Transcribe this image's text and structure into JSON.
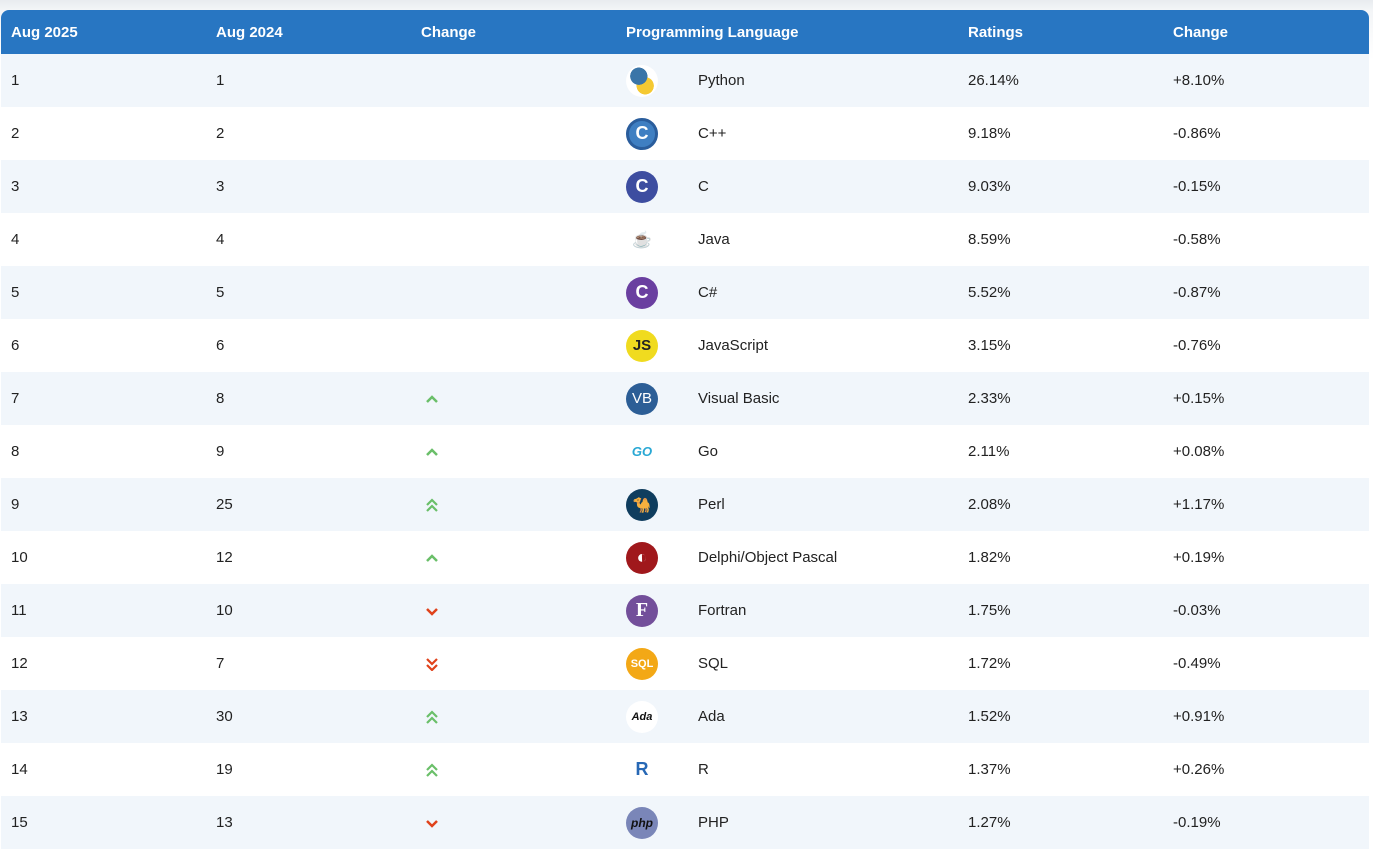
{
  "header": {
    "col_current": "Aug 2025",
    "col_previous": "Aug 2024",
    "col_change": "Change",
    "col_language": "Programming Language",
    "col_ratings": "Ratings",
    "col_ratings_change": "Change"
  },
  "colors": {
    "header": "#2876c2",
    "up": "#6abf69",
    "down": "#e0421b"
  },
  "rows": [
    {
      "rank": "1",
      "prev": "1",
      "trend": "none",
      "language": "Python",
      "icon": "python-logo",
      "rating": "26.14%",
      "change": "+8.10%"
    },
    {
      "rank": "2",
      "prev": "2",
      "trend": "none",
      "language": "C++",
      "icon": "cpp-logo",
      "rating": "9.18%",
      "change": "-0.86%"
    },
    {
      "rank": "3",
      "prev": "3",
      "trend": "none",
      "language": "C",
      "icon": "c-logo",
      "rating": "9.03%",
      "change": "-0.15%"
    },
    {
      "rank": "4",
      "prev": "4",
      "trend": "none",
      "language": "Java",
      "icon": "java-logo",
      "rating": "8.59%",
      "change": "-0.58%"
    },
    {
      "rank": "5",
      "prev": "5",
      "trend": "none",
      "language": "C#",
      "icon": "csharp-logo",
      "rating": "5.52%",
      "change": "-0.87%"
    },
    {
      "rank": "6",
      "prev": "6",
      "trend": "none",
      "language": "JavaScript",
      "icon": "javascript-logo",
      "rating": "3.15%",
      "change": "-0.76%"
    },
    {
      "rank": "7",
      "prev": "8",
      "trend": "up",
      "language": "Visual Basic",
      "icon": "visual-basic-logo",
      "rating": "2.33%",
      "change": "+0.15%"
    },
    {
      "rank": "8",
      "prev": "9",
      "trend": "up",
      "language": "Go",
      "icon": "go-logo",
      "rating": "2.11%",
      "change": "+0.08%"
    },
    {
      "rank": "9",
      "prev": "25",
      "trend": "up2",
      "language": "Perl",
      "icon": "perl-logo",
      "rating": "2.08%",
      "change": "+1.17%"
    },
    {
      "rank": "10",
      "prev": "12",
      "trend": "up",
      "language": "Delphi/Object Pascal",
      "icon": "delphi-logo",
      "rating": "1.82%",
      "change": "+0.19%"
    },
    {
      "rank": "11",
      "prev": "10",
      "trend": "down",
      "language": "Fortran",
      "icon": "fortran-logo",
      "rating": "1.75%",
      "change": "-0.03%"
    },
    {
      "rank": "12",
      "prev": "7",
      "trend": "down2",
      "language": "SQL",
      "icon": "sql-logo",
      "rating": "1.72%",
      "change": "-0.49%"
    },
    {
      "rank": "13",
      "prev": "30",
      "trend": "up2",
      "language": "Ada",
      "icon": "ada-logo",
      "rating": "1.52%",
      "change": "+0.91%"
    },
    {
      "rank": "14",
      "prev": "19",
      "trend": "up2",
      "language": "R",
      "icon": "r-logo",
      "rating": "1.37%",
      "change": "+0.26%"
    },
    {
      "rank": "15",
      "prev": "13",
      "trend": "down",
      "language": "PHP",
      "icon": "php-logo",
      "rating": "1.27%",
      "change": "-0.19%"
    }
  ],
  "icon_text": {
    "python-logo": "",
    "cpp-logo": "C",
    "c-logo": "C",
    "java-logo": "☕",
    "csharp-logo": "C",
    "javascript-logo": "JS",
    "visual-basic-logo": "VB",
    "go-logo": "GO",
    "perl-logo": "🐪",
    "delphi-logo": "◐",
    "fortran-logo": "F",
    "sql-logo": "SQL",
    "ada-logo": "Ada",
    "r-logo": "R",
    "php-logo": "php"
  }
}
